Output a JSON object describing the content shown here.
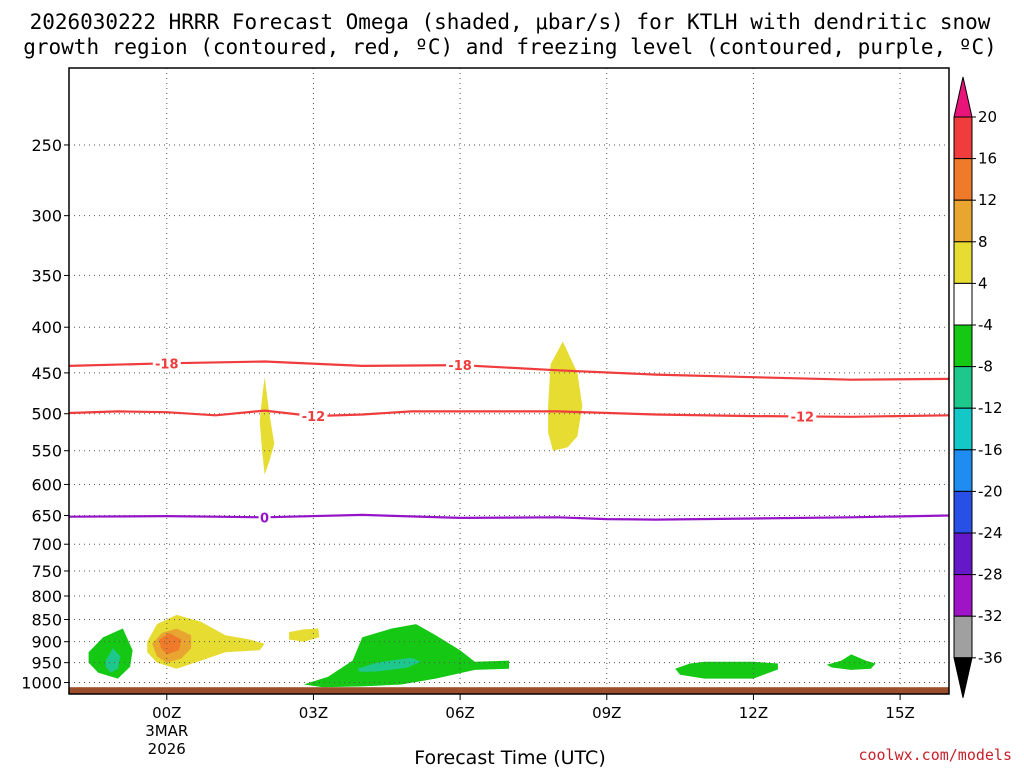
{
  "chart_data": {
    "type": "contour",
    "title_line1": "2026030222 HRRR Forecast Omega (shaded, μbar/s) for KTLH with dendritic snow",
    "title_line2": "growth region (contoured, red, ºC) and freezing level (contoured, purple, ºC)",
    "xlabel": "Forecast Time (UTC)",
    "ylabel": "",
    "credit": "coolwx.com/models",
    "x_range_hours": [
      -2,
      16
    ],
    "y_range_hpa": [
      1030,
      205
    ],
    "y_ticks": [
      250,
      300,
      350,
      400,
      450,
      500,
      550,
      600,
      650,
      700,
      750,
      800,
      850,
      900,
      950,
      1000
    ],
    "y_tick_labels": [
      "250",
      "300",
      "350",
      "400",
      "450",
      "500",
      "550",
      "600",
      "650",
      "700",
      "750",
      "800",
      "850",
      "900",
      "950",
      "1000"
    ],
    "x_ticks": [
      {
        "hour": 0,
        "label": "00Z",
        "sub1": "3MAR",
        "sub2": "2026"
      },
      {
        "hour": 3,
        "label": "03Z",
        "sub1": "",
        "sub2": ""
      },
      {
        "hour": 6,
        "label": "06Z",
        "sub1": "",
        "sub2": ""
      },
      {
        "hour": 9,
        "label": "09Z",
        "sub1": "",
        "sub2": ""
      },
      {
        "hour": 12,
        "label": "12Z",
        "sub1": "",
        "sub2": ""
      },
      {
        "hour": 15,
        "label": "15Z",
        "sub1": "",
        "sub2": ""
      }
    ],
    "colorbar": {
      "levels": [
        20,
        16,
        12,
        8,
        4,
        -4,
        -8,
        -12,
        -16,
        -20,
        -24,
        -28,
        -32,
        -36
      ],
      "labels": [
        "20",
        "16",
        "12",
        "8",
        "4",
        "-4",
        "-8",
        "-12",
        "-16",
        "-20",
        "-24",
        "-28",
        "-32",
        "-36"
      ],
      "bins": [
        {
          "range": "16 to 20",
          "color": "#f03c3c"
        },
        {
          "range": "12 to 16",
          "color": "#ee7a2a"
        },
        {
          "range": "8 to 12",
          "color": "#e8a630"
        },
        {
          "range": "4 to 8",
          "color": "#e6dc32"
        },
        {
          "range": "-4 to 4",
          "color": "#ffffff"
        },
        {
          "range": "-8 to -4",
          "color": "#14c814"
        },
        {
          "range": "-12 to -8",
          "color": "#1ec88c"
        },
        {
          "range": "-16 to -12",
          "color": "#14c8c8"
        },
        {
          "range": "-20 to -16",
          "color": "#1e8cf0"
        },
        {
          "range": "-24 to -20",
          "color": "#2850e6"
        },
        {
          "range": "-28 to -24",
          "color": "#6418c8"
        },
        {
          "range": "-32 to -28",
          "color": "#a014c8"
        },
        {
          "range": "-36 to -32",
          "color": "#a0a0a0"
        }
      ],
      "top_arrow_color": "#e8147a",
      "bottom_arrow_color": "#000000"
    },
    "isotherms": [
      {
        "label": "-18",
        "color": "#f03c3c",
        "points": [
          [
            -2,
            442
          ],
          [
            0,
            439
          ],
          [
            2,
            437
          ],
          [
            4,
            442
          ],
          [
            6,
            441
          ],
          [
            8,
            447
          ],
          [
            10,
            452
          ],
          [
            12,
            455
          ],
          [
            14,
            458
          ],
          [
            16,
            457
          ]
        ],
        "label_hours": [
          0,
          6
        ]
      },
      {
        "label": "-12",
        "color": "#f03c3c",
        "points": [
          [
            -2,
            499
          ],
          [
            -1,
            497
          ],
          [
            0,
            498
          ],
          [
            1,
            502
          ],
          [
            2,
            496
          ],
          [
            3,
            503
          ],
          [
            4,
            501
          ],
          [
            5,
            497
          ],
          [
            7,
            497
          ],
          [
            8,
            497
          ],
          [
            10,
            501
          ],
          [
            12,
            503
          ],
          [
            14,
            504
          ],
          [
            16,
            502
          ]
        ],
        "label_hours": [
          3,
          13
        ]
      },
      {
        "label": "0",
        "color": "#9614c8",
        "points": [
          [
            -2,
            652
          ],
          [
            0,
            651
          ],
          [
            2,
            653
          ],
          [
            4,
            649
          ],
          [
            6,
            654
          ],
          [
            8,
            653
          ],
          [
            9,
            656
          ],
          [
            10,
            657
          ],
          [
            12,
            655
          ],
          [
            14,
            653
          ],
          [
            16,
            650
          ]
        ],
        "label_hours": [
          2
        ]
      }
    ],
    "omega_areas": [
      {
        "name": "yellow-area-early-lowlevel",
        "value_range": "4 to 8",
        "color": "#e6dc32",
        "points": [
          [
            -0.4,
            900
          ],
          [
            -0.2,
            860
          ],
          [
            0.2,
            840
          ],
          [
            0.7,
            855
          ],
          [
            1.2,
            885
          ],
          [
            1.7,
            895
          ],
          [
            2.0,
            905
          ],
          [
            1.9,
            920
          ],
          [
            1.2,
            925
          ],
          [
            0.7,
            945
          ],
          [
            0.2,
            965
          ],
          [
            -0.2,
            950
          ],
          [
            -0.4,
            925
          ]
        ]
      },
      {
        "name": "orange-area-early-lowlevel",
        "value_range": "8 to 12",
        "color": "#e8a630",
        "points": [
          [
            -0.3,
            905
          ],
          [
            -0.1,
            880
          ],
          [
            0.2,
            870
          ],
          [
            0.5,
            885
          ],
          [
            0.5,
            915
          ],
          [
            0.3,
            940
          ],
          [
            0.0,
            950
          ],
          [
            -0.2,
            935
          ]
        ]
      },
      {
        "name": "darkorange-area-early-lowlevel",
        "value_range": "12 to 16",
        "color": "#ee7a2a",
        "points": [
          [
            -0.15,
            895
          ],
          [
            0.05,
            880
          ],
          [
            0.3,
            895
          ],
          [
            0.25,
            920
          ],
          [
            0.0,
            930
          ],
          [
            -0.12,
            915
          ]
        ]
      },
      {
        "name": "yellow-area-02z-midlevel",
        "value_range": "4 to 8",
        "color": "#e6dc32",
        "points": [
          [
            1.9,
            510
          ],
          [
            1.95,
            480
          ],
          [
            2.0,
            455
          ],
          [
            2.1,
            500
          ],
          [
            2.2,
            540
          ],
          [
            2.1,
            565
          ],
          [
            2.0,
            585
          ],
          [
            1.95,
            550
          ]
        ]
      },
      {
        "name": "yellow-area-03z-lowlevel",
        "value_range": "4 to 8",
        "color": "#e6dc32",
        "points": [
          [
            2.5,
            878
          ],
          [
            2.8,
            872
          ],
          [
            3.1,
            870
          ],
          [
            3.12,
            890
          ],
          [
            2.8,
            900
          ],
          [
            2.5,
            895
          ]
        ]
      },
      {
        "name": "yellow-area-08z-midlevel",
        "value_range": "4 to 8",
        "color": "#e6dc32",
        "points": [
          [
            7.8,
            490
          ],
          [
            7.85,
            440
          ],
          [
            8.1,
            415
          ],
          [
            8.4,
            450
          ],
          [
            8.5,
            490
          ],
          [
            8.4,
            530
          ],
          [
            8.2,
            545
          ],
          [
            7.9,
            550
          ],
          [
            7.8,
            525
          ]
        ]
      },
      {
        "name": "green-area-early",
        "value_range": "-8 to -4",
        "color": "#14c814",
        "points": [
          [
            -1.6,
            925
          ],
          [
            -1.3,
            890
          ],
          [
            -0.9,
            870
          ],
          [
            -0.7,
            920
          ],
          [
            -0.75,
            960
          ],
          [
            -1.0,
            990
          ],
          [
            -1.4,
            975
          ],
          [
            -1.6,
            950
          ]
        ]
      },
      {
        "name": "teal-area-early",
        "value_range": "-12 to -8",
        "color": "#1ec88c",
        "points": [
          [
            -1.25,
            945
          ],
          [
            -1.1,
            915
          ],
          [
            -0.95,
            935
          ],
          [
            -1.0,
            965
          ],
          [
            -1.15,
            975
          ],
          [
            -1.25,
            960
          ]
        ]
      },
      {
        "name": "green-area-04z",
        "value_range": "-8 to -4",
        "color": "#14c814",
        "points": [
          [
            2.8,
            1005
          ],
          [
            3.3,
            985
          ],
          [
            3.8,
            945
          ],
          [
            4.0,
            890
          ],
          [
            4.6,
            870
          ],
          [
            5.1,
            860
          ],
          [
            5.5,
            885
          ],
          [
            6.0,
            920
          ],
          [
            6.3,
            948
          ],
          [
            7.0,
            945
          ],
          [
            7.0,
            965
          ],
          [
            6.3,
            968
          ],
          [
            5.5,
            990
          ],
          [
            4.8,
            1005
          ],
          [
            4.0,
            1010
          ],
          [
            3.2,
            1012
          ]
        ]
      },
      {
        "name": "teal-area-04z",
        "value_range": "-12 to -8",
        "color": "#1ec88c",
        "points": [
          [
            3.9,
            965
          ],
          [
            4.3,
            950
          ],
          [
            5.0,
            938
          ],
          [
            5.2,
            948
          ],
          [
            4.9,
            963
          ],
          [
            4.3,
            972
          ],
          [
            3.95,
            973
          ]
        ]
      },
      {
        "name": "green-area-11z",
        "value_range": "-8 to -4",
        "color": "#14c814",
        "points": [
          [
            10.4,
            965
          ],
          [
            10.7,
            952
          ],
          [
            11.0,
            948
          ],
          [
            12.0,
            948
          ],
          [
            12.5,
            952
          ],
          [
            12.5,
            967
          ],
          [
            12.0,
            990
          ],
          [
            11.0,
            990
          ],
          [
            10.5,
            980
          ]
        ]
      },
      {
        "name": "green-area-14z",
        "value_range": "-8 to -4",
        "color": "#14c814",
        "points": [
          [
            13.5,
            955
          ],
          [
            13.8,
            945
          ],
          [
            14.0,
            930
          ],
          [
            14.3,
            945
          ],
          [
            14.5,
            952
          ],
          [
            14.4,
            965
          ],
          [
            14.0,
            968
          ],
          [
            13.6,
            962
          ]
        ]
      }
    ],
    "ground_color": "#9a4f2a"
  }
}
